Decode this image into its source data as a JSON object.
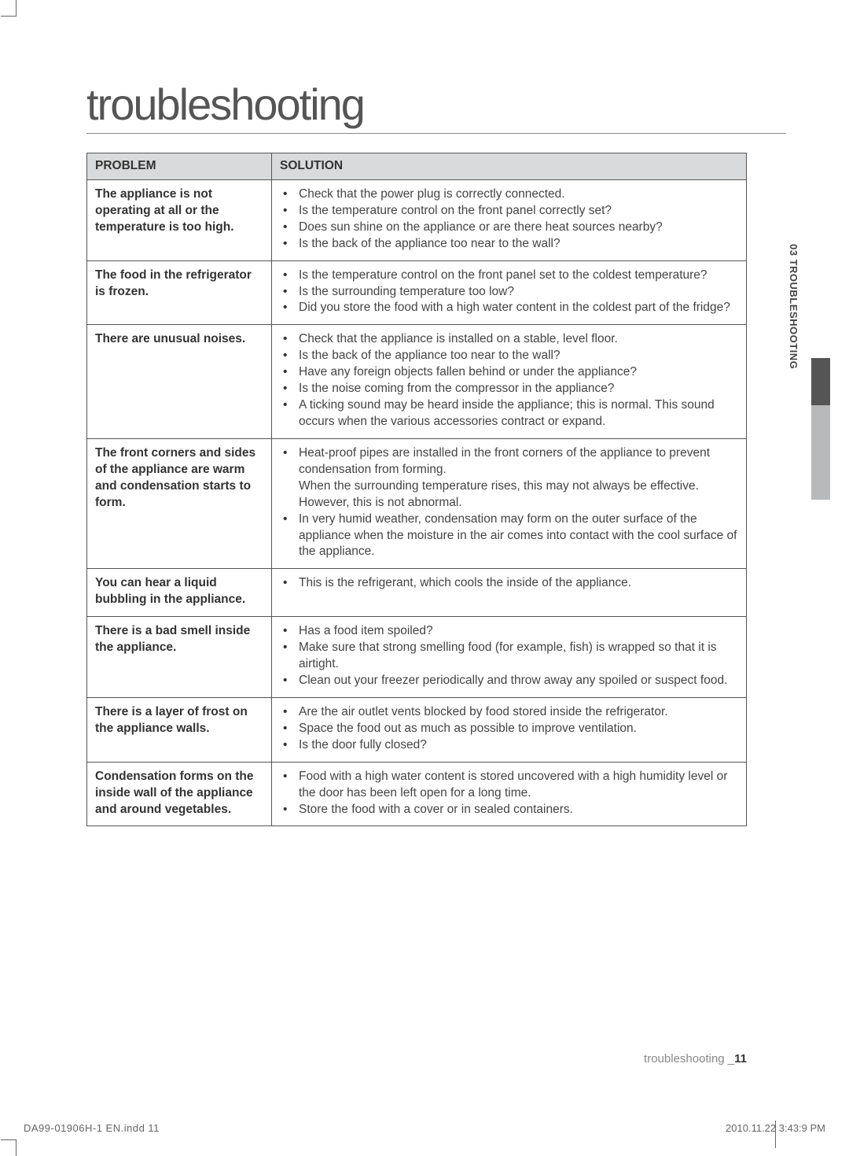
{
  "title": "troubleshooting",
  "table": {
    "header_problem": "PROBLEM",
    "header_solution": "SOLUTION",
    "rows": [
      {
        "problem": "The appliance is not operating at all or the temperature is too high.",
        "solutions": [
          "Check that the power plug is correctly connected.",
          "Is the temperature control on the front panel correctly set?",
          "Does sun shine on the appliance or are there heat sources nearby?",
          "Is the back of the appliance too near to the wall?"
        ]
      },
      {
        "problem": "The food in the refrigerator is frozen.",
        "solutions": [
          "Is the temperature control on the front panel set to the coldest temperature?",
          "Is the surrounding temperature too low?",
          "Did you store the food with a high water content in the coldest part of the fridge?"
        ]
      },
      {
        "problem": "There are unusual noises.",
        "solutions": [
          "Check that the appliance is installed on a stable, level floor.",
          "Is the back of the appliance too near to the wall?",
          "Have any foreign objects fallen behind or under the appliance?",
          "Is the noise coming from the compressor in the appliance?",
          "A ticking sound may be heard inside the appliance; this is normal. This sound occurs when the various accessories contract or expand."
        ]
      },
      {
        "problem": "The front corners and sides of the appliance are warm and condensation starts to form.",
        "solutions": [
          "Heat-proof pipes are installed in the front corners of the appliance to prevent condensation from forming.\nWhen the surrounding temperature rises, this may not always be effective. However, this is not abnormal.",
          "In very humid weather, condensation may form on the outer surface of the appliance when the moisture in the air comes into contact with the cool surface of the appliance."
        ]
      },
      {
        "problem": "You can hear a liquid bubbling in the appliance.",
        "solutions": [
          "This is the refrigerant, which cools the inside of the appliance."
        ]
      },
      {
        "problem": "There is a bad smell inside the appliance.",
        "solutions": [
          "Has a food item spoiled?",
          "Make sure that strong smelling food (for example, fish) is wrapped so that it is airtight.",
          "Clean out your freezer periodically and throw away any spoiled or suspect food."
        ]
      },
      {
        "problem": "There is a layer of frost on the appliance walls.",
        "solutions": [
          "Are the air outlet vents blocked by food stored inside the refrigerator.",
          "Space the food out as much as possible to improve ventilation.",
          "Is the door fully closed?"
        ]
      },
      {
        "problem": "Condensation forms on the inside wall of the appliance and around vegetables.",
        "solutions": [
          "Food with a high water content is stored uncovered with a high humidity level or the door has been left open for a long time.",
          "Store the food with a cover or in sealed containers."
        ]
      }
    ]
  },
  "sidetab": "03  TROUBLESHOOTING",
  "footer": {
    "section": "troubleshooting _",
    "page": "11"
  },
  "slug": {
    "file": "DA99-01906H-1 EN.indd   11",
    "timestamp": "2010.11.22   3:43:9 PM"
  }
}
